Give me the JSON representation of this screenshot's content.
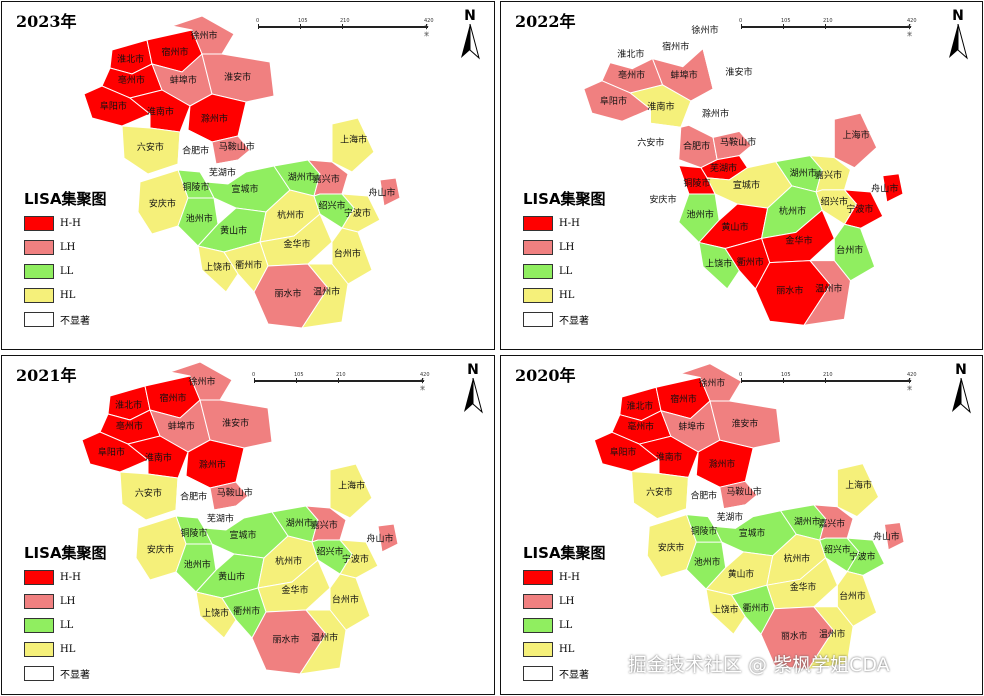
{
  "legend": {
    "title": "LISA集聚图",
    "items": [
      {
        "code": "HH",
        "label": "H-H",
        "color": "#ff0000"
      },
      {
        "code": "LH",
        "label": "LH",
        "color": "#f08080"
      },
      {
        "code": "LL",
        "label": "LL",
        "color": "#90ee60"
      },
      {
        "code": "HL",
        "label": "HL",
        "color": "#f5f07a"
      },
      {
        "code": "NS",
        "label": "不显著",
        "color": "#ffffff"
      }
    ]
  },
  "north_label": "N",
  "scale_ticks": [
    "0",
    "105",
    "210",
    "420 千米"
  ],
  "watermark": "掘金技术社区 @ 紫枫学姐CDA",
  "cities": [
    "淮北市",
    "宿州市",
    "徐州市",
    "亳州市",
    "蚌埠市",
    "阜阳市",
    "淮安市",
    "淮南市",
    "滁州市",
    "六安市",
    "合肥市",
    "马鞍山市",
    "芜湖市",
    "上海市",
    "铜陵市",
    "宣城市",
    "湖州市",
    "嘉兴市",
    "安庆市",
    "池州市",
    "宁波市",
    "舟山市",
    "黄山市",
    "杭州市",
    "绍兴市",
    "上饶市",
    "金华市",
    "台州市",
    "衢州市",
    "丽水市",
    "温州市"
  ],
  "panels": [
    {
      "year": "2023年",
      "classes": {
        "淮北市": "HH",
        "宿州市": "HH",
        "徐州市": "LH",
        "亳州市": "HH",
        "蚌埠市": "LH",
        "阜阳市": "HH",
        "淮安市": "LH",
        "淮南市": "HH",
        "滁州市": "HH",
        "六安市": "HL",
        "合肥市": "NS",
        "马鞍山市": "LH",
        "芜湖市": "NS",
        "上海市": "HL",
        "铜陵市": "LL",
        "宣城市": "LL",
        "湖州市": "LL",
        "嘉兴市": "LH",
        "安庆市": "HL",
        "池州市": "LL",
        "宁波市": "HL",
        "舟山市": "LH",
        "黄山市": "LL",
        "杭州市": "HL",
        "绍兴市": "LL",
        "上饶市": "HL",
        "金华市": "HL",
        "台州市": "HL",
        "衢州市": "HL",
        "丽水市": "LH",
        "温州市": "HL"
      }
    },
    {
      "year": "2022年",
      "classes": {
        "淮北市": "NS",
        "宿州市": "NS",
        "徐州市": "NS",
        "亳州市": "LH",
        "蚌埠市": "LH",
        "阜阳市": "LH",
        "淮安市": "NS",
        "淮南市": "HL",
        "滁州市": "NS",
        "六安市": "NS",
        "合肥市": "LH",
        "马鞍山市": "LH",
        "芜湖市": "HH",
        "上海市": "LH",
        "铜陵市": "HH",
        "宣城市": "HL",
        "湖州市": "LL",
        "嘉兴市": "HL",
        "安庆市": "NS",
        "池州市": "LL",
        "宁波市": "HH",
        "舟山市": "HH",
        "黄山市": "HH",
        "杭州市": "LL",
        "绍兴市": "HL",
        "上饶市": "LL",
        "金华市": "HH",
        "台州市": "LL",
        "衢州市": "HH",
        "丽水市": "HH",
        "温州市": "LH"
      }
    },
    {
      "year": "2021年",
      "classes": {
        "淮北市": "HH",
        "宿州市": "HH",
        "徐州市": "LH",
        "亳州市": "HH",
        "蚌埠市": "LH",
        "阜阳市": "HH",
        "淮安市": "LH",
        "淮南市": "HH",
        "滁州市": "HH",
        "六安市": "HL",
        "合肥市": "NS",
        "马鞍山市": "LH",
        "芜湖市": "NS",
        "上海市": "HL",
        "铜陵市": "LL",
        "宣城市": "LL",
        "湖州市": "LL",
        "嘉兴市": "LH",
        "安庆市": "HL",
        "池州市": "LL",
        "宁波市": "HL",
        "舟山市": "LH",
        "黄山市": "LL",
        "杭州市": "HL",
        "绍兴市": "LL",
        "上饶市": "HL",
        "金华市": "HL",
        "台州市": "HL",
        "衢州市": "LL",
        "丽水市": "LH",
        "温州市": "HL"
      }
    },
    {
      "year": "2020年",
      "classes": {
        "淮北市": "HH",
        "宿州市": "HH",
        "徐州市": "LH",
        "亳州市": "HH",
        "蚌埠市": "LH",
        "阜阳市": "HH",
        "淮安市": "LH",
        "淮南市": "HH",
        "滁州市": "HH",
        "六安市": "HL",
        "合肥市": "NS",
        "马鞍山市": "LH",
        "芜湖市": "NS",
        "上海市": "HL",
        "铜陵市": "LL",
        "宣城市": "LL",
        "湖州市": "LL",
        "嘉兴市": "LH",
        "安庆市": "HL",
        "池州市": "LL",
        "宁波市": "LL",
        "舟山市": "LH",
        "黄山市": "HL",
        "杭州市": "HL",
        "绍兴市": "LL",
        "上饶市": "HL",
        "金华市": "HL",
        "台州市": "HL",
        "衢州市": "LL",
        "丽水市": "LH",
        "温州市": "HL"
      }
    }
  ]
}
